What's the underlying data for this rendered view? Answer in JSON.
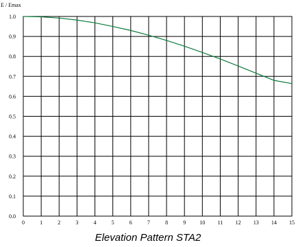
{
  "chart_data": {
    "type": "line",
    "title": "Elevation Pattern STA2",
    "xlabel": "",
    "ylabel": "E / Emax",
    "xlim": [
      0,
      15
    ],
    "ylim": [
      0,
      1
    ],
    "x_ticks": [
      "0",
      "1",
      "2",
      "3",
      "4",
      "5",
      "6",
      "7",
      "8",
      "9",
      "10",
      "11",
      "12",
      "13",
      "14",
      "15"
    ],
    "y_ticks": [
      "0.0",
      "0.1",
      "0.2",
      "0.3",
      "0.4",
      "0.5",
      "0.6",
      "0.7",
      "0.8",
      "0.9",
      "1.0"
    ],
    "grid": true,
    "series": [
      {
        "color": "#0a7a3a",
        "x": [
          0,
          1,
          2,
          3,
          4,
          5,
          6,
          7,
          8,
          9,
          10,
          11,
          12,
          13,
          14,
          15
        ],
        "y": [
          1.0,
          0.998,
          0.992,
          0.982,
          0.968,
          0.95,
          0.93,
          0.906,
          0.88,
          0.851,
          0.82,
          0.787,
          0.752,
          0.716,
          0.68,
          0.664
        ]
      }
    ]
  }
}
